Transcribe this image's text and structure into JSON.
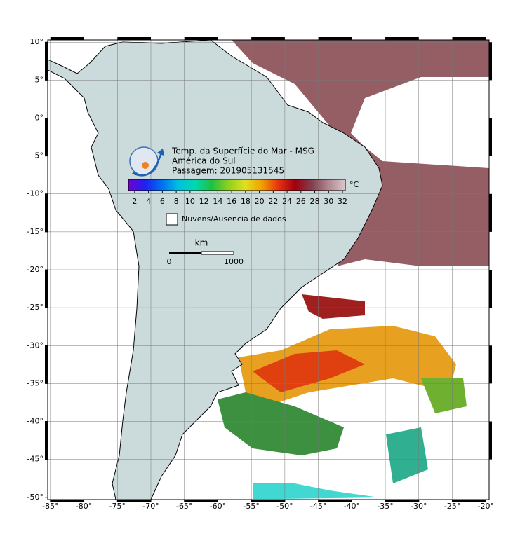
{
  "map": {
    "title": "Temp. da Superfície do Mar - MSG",
    "subtitle": "América do Sul",
    "pass": "Passagem: 201905131545",
    "lonlim": [
      -85.4,
      -19.5
    ],
    "latlim": [
      -50.3,
      10.3
    ],
    "xticks": [
      {
        "value": -85,
        "label": "-85°"
      },
      {
        "value": -80,
        "label": "-80°"
      },
      {
        "value": -75,
        "label": "-75°"
      },
      {
        "value": -70,
        "label": "-70°"
      },
      {
        "value": -65,
        "label": "-65°"
      },
      {
        "value": -60,
        "label": "-60°"
      },
      {
        "value": -55,
        "label": "-55°"
      },
      {
        "value": -50,
        "label": "-50°"
      },
      {
        "value": -45,
        "label": "-45°"
      },
      {
        "value": -40,
        "label": "-40°"
      },
      {
        "value": -35,
        "label": "-35°"
      },
      {
        "value": -30,
        "label": "-30°"
      },
      {
        "value": -25,
        "label": "-25°"
      },
      {
        "value": -20,
        "label": "-20°"
      }
    ],
    "yticks": [
      {
        "value": 10,
        "label": "10°"
      },
      {
        "value": 5,
        "label": "5°"
      },
      {
        "value": 0,
        "label": "0°"
      },
      {
        "value": -5,
        "label": "-5°"
      },
      {
        "value": -10,
        "label": "-10°"
      },
      {
        "value": -15,
        "label": "-15°"
      },
      {
        "value": -20,
        "label": "-20°"
      },
      {
        "value": -25,
        "label": "-25°"
      },
      {
        "value": -30,
        "label": "-30°"
      },
      {
        "value": -35,
        "label": "-35°"
      },
      {
        "value": -40,
        "label": "-40°"
      },
      {
        "value": -45,
        "label": "-45°"
      },
      {
        "value": -50,
        "label": "-50°"
      }
    ],
    "grid": true,
    "colorbar": {
      "lim": [
        1.1,
        32.4
      ],
      "ticks": [
        2,
        4,
        6,
        8,
        10,
        12,
        14,
        16,
        18,
        20,
        22,
        24,
        26,
        28,
        30,
        32
      ],
      "unit": "°C",
      "colors": [
        "#7000d0",
        "#2020f0",
        "#0070f0",
        "#00c0e0",
        "#00d8b0",
        "#20c040",
        "#90d020",
        "#e0e020",
        "#f0a000",
        "#e83010",
        "#a00010",
        "#804050",
        "#b08890",
        "#d8c8cc"
      ]
    },
    "legend": "Nuvens/Ausencia de dados",
    "scale_bar": {
      "unit": "km",
      "ticks": [
        0,
        1000
      ]
    }
  }
}
